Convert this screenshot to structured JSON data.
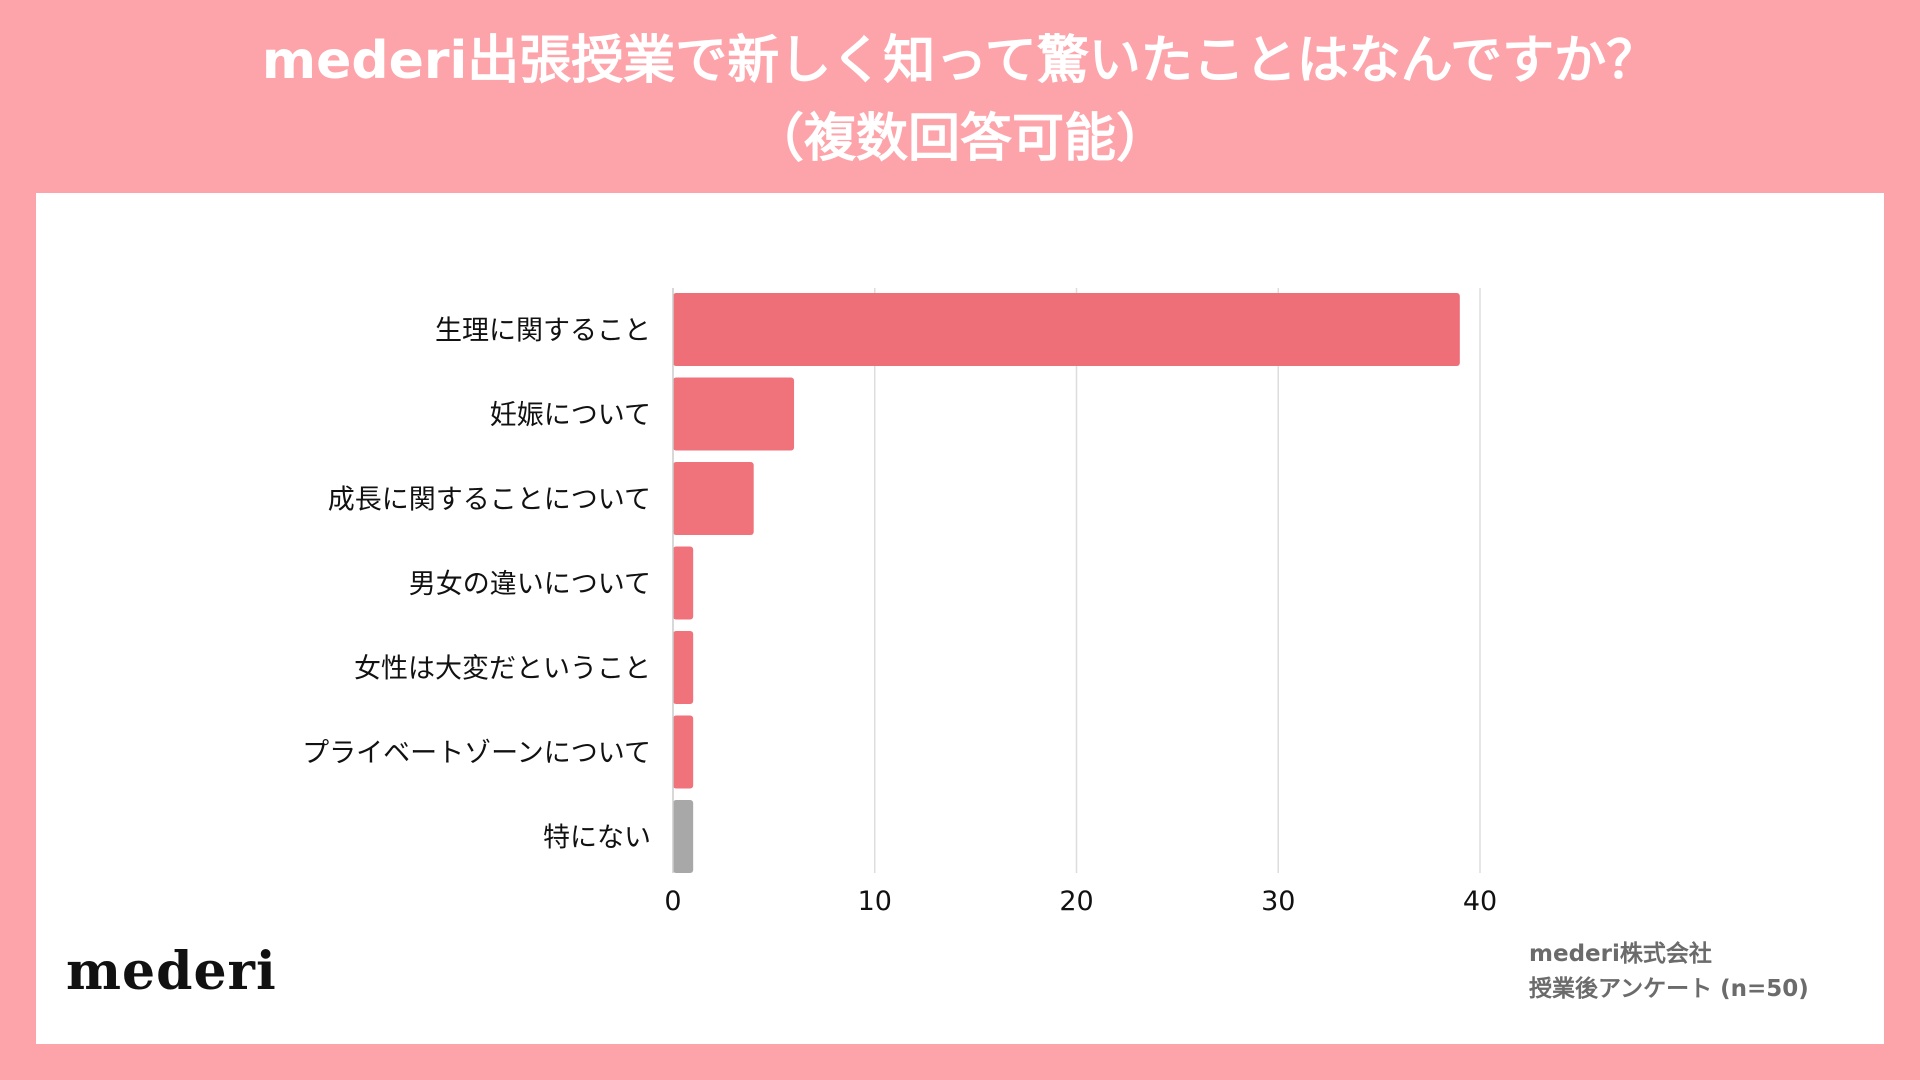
{
  "header": {
    "title_line1": "mederi出張授業で新しく知って驚いたことはなんですか？",
    "title_line2": "（複数回答可能）"
  },
  "footer": {
    "logo_text": "mederi",
    "source_line1": "mederi株式会社",
    "source_line2": "授業後アンケート (n=50)"
  },
  "colors": {
    "background": "#fda4ab",
    "bar": "#f0727b",
    "bar_top": "#ee6f78",
    "bar_none": "#a8a8a8",
    "grid": "#dddddd",
    "axis_text": "#111111",
    "title": "#ffffff",
    "source": "#6b6b6b"
  },
  "chart_data": {
    "type": "bar",
    "orientation": "horizontal",
    "title": "mederi出張授業で新しく知って驚いたことはなんですか？（複数回答可能）",
    "categories": [
      "生理に関すること",
      "妊娠について",
      "成長に関することについて",
      "男女の違いについて",
      "女性は大変だということ",
      "プライベートゾーンについて",
      "特にない"
    ],
    "values": [
      39,
      6,
      4,
      1,
      1,
      1,
      1
    ],
    "xlim": [
      0,
      40
    ],
    "xticks": [
      "0",
      "10",
      "20",
      "30",
      "40"
    ],
    "xlabel": "",
    "ylabel": "",
    "grid": true,
    "legend": "none"
  }
}
